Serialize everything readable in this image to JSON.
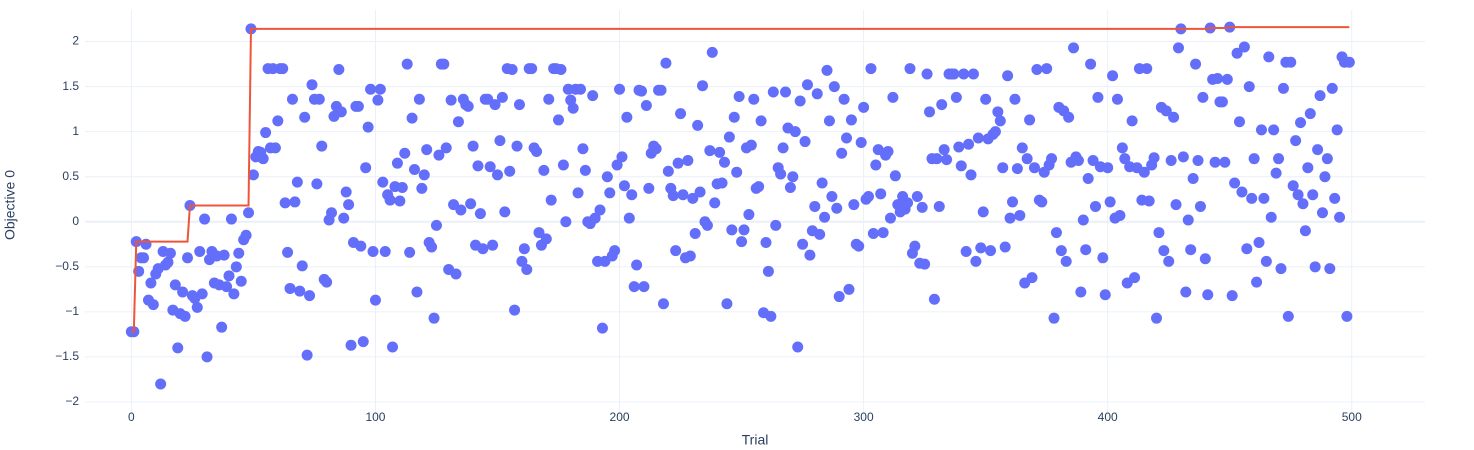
{
  "chart_data": {
    "type": "scatter",
    "x_label": "Trial",
    "y_label": "Objective 0",
    "xlim": [
      -19,
      530
    ],
    "ylim": [
      -2.2,
      2.35
    ],
    "xticks": [
      0,
      100,
      200,
      300,
      400,
      500
    ],
    "yticks": [
      {
        "value": -2,
        "label": "−2"
      },
      {
        "value": -1.5,
        "label": "−1.5"
      },
      {
        "value": -1,
        "label": "−1"
      },
      {
        "value": -0.5,
        "label": "−0.5"
      },
      0,
      0.5,
      1,
      1.5,
      2
    ],
    "grid": true,
    "series": [
      {
        "color": "#636efa",
        "mode": "markers",
        "x": [
          0,
          1,
          2,
          3,
          4,
          5,
          6,
          7,
          8,
          9,
          10,
          11,
          12,
          13,
          14,
          15,
          16,
          17,
          18,
          19,
          20,
          21,
          22,
          23,
          24,
          25,
          26,
          27,
          28,
          29,
          30,
          31,
          32,
          33,
          34,
          35,
          36,
          37,
          38,
          39,
          40,
          41,
          42,
          43,
          44,
          45,
          46,
          47,
          48,
          49,
          50,
          51,
          52,
          53,
          54,
          55,
          56,
          57,
          58,
          59,
          60,
          61,
          62,
          63,
          64,
          65,
          66,
          67,
          68,
          69,
          70,
          71,
          72,
          73,
          74,
          75,
          76,
          77,
          78,
          79,
          80,
          81,
          82,
          83,
          84,
          85,
          86,
          87,
          88,
          89,
          90,
          91,
          92,
          93,
          94,
          95,
          96,
          97,
          98,
          99,
          100,
          101,
          102,
          103,
          104,
          105,
          106,
          107,
          108,
          109,
          110,
          111,
          112,
          113,
          114,
          115,
          116,
          117,
          118,
          119,
          120,
          121,
          122,
          123,
          124,
          125,
          126,
          127,
          128,
          129,
          130,
          131,
          132,
          133,
          134,
          135,
          136,
          137,
          138,
          139,
          140,
          141,
          142,
          143,
          144,
          145,
          146,
          147,
          148,
          149,
          150,
          151,
          152,
          153,
          154,
          155,
          156,
          157,
          158,
          159,
          160,
          161,
          162,
          163,
          164,
          165,
          166,
          167,
          168,
          169,
          170,
          171,
          172,
          173,
          174,
          175,
          176,
          177,
          178,
          179,
          180,
          181,
          182,
          183,
          184,
          185,
          186,
          187,
          188,
          189,
          190,
          191,
          192,
          193,
          194,
          195,
          196,
          197,
          198,
          199,
          200,
          201,
          202,
          203,
          204,
          205,
          206,
          207,
          208,
          209,
          210,
          211,
          212,
          213,
          214,
          215,
          216,
          217,
          218,
          219,
          220,
          221,
          222,
          223,
          224,
          225,
          226,
          227,
          228,
          229,
          230,
          231,
          232,
          233,
          234,
          235,
          236,
          237,
          238,
          239,
          240,
          241,
          242,
          243,
          244,
          245,
          246,
          247,
          248,
          249,
          250,
          251,
          252,
          253,
          254,
          255,
          256,
          257,
          258,
          259,
          260,
          261,
          262,
          263,
          264,
          265,
          266,
          267,
          268,
          269,
          270,
          271,
          272,
          273,
          274,
          275,
          276,
          277,
          278,
          279,
          280,
          281,
          282,
          283,
          284,
          285,
          286,
          287,
          288,
          289,
          290,
          291,
          292,
          293,
          294,
          295,
          296,
          297,
          298,
          299,
          300,
          301,
          302,
          303,
          304,
          305,
          306,
          307,
          308,
          309,
          310,
          311,
          312,
          313,
          314,
          315,
          316,
          317,
          318,
          319,
          320,
          321,
          322,
          323,
          324,
          325,
          326,
          327,
          328,
          329,
          330,
          331,
          332,
          333,
          334,
          335,
          336,
          337,
          338,
          339,
          340,
          341,
          342,
          343,
          344,
          345,
          346,
          347,
          348,
          349,
          350,
          351,
          352,
          353,
          354,
          355,
          356,
          357,
          358,
          359,
          360,
          361,
          362,
          363,
          364,
          365,
          366,
          367,
          368,
          369,
          370,
          371,
          372,
          373,
          374,
          375,
          376,
          377,
          378,
          379,
          380,
          381,
          382,
          383,
          384,
          385,
          386,
          387,
          388,
          389,
          390,
          391,
          392,
          393,
          394,
          395,
          396,
          397,
          398,
          399,
          400,
          401,
          402,
          403,
          404,
          405,
          406,
          407,
          408,
          409,
          410,
          411,
          412,
          413,
          414,
          415,
          416,
          417,
          418,
          419,
          420,
          421,
          422,
          423,
          424,
          425,
          426,
          427,
          428,
          429,
          430,
          431,
          432,
          433,
          434,
          435,
          436,
          437,
          438,
          439,
          440,
          441,
          442,
          443,
          444,
          445,
          446,
          447,
          448,
          449,
          450,
          451,
          452,
          453,
          454,
          455,
          456,
          457,
          458,
          459,
          460,
          461,
          462,
          463,
          464,
          465,
          466,
          467,
          468,
          469,
          470,
          471,
          472,
          473,
          474,
          475,
          476,
          477,
          478,
          479,
          480,
          481,
          482,
          483,
          484,
          485,
          486,
          487,
          488,
          489,
          490,
          491,
          492,
          493,
          494,
          495,
          496,
          497,
          498,
          499
        ],
        "values": [
          -1.22,
          -1.22,
          -0.22,
          -0.55,
          -0.4,
          -0.4,
          -0.25,
          -0.87,
          -0.68,
          -0.92,
          -0.58,
          -0.52,
          -1.8,
          -0.33,
          -0.48,
          -0.45,
          -0.35,
          -0.98,
          -0.7,
          -1.4,
          -1.02,
          -0.78,
          -1.05,
          -0.4,
          0.18,
          -0.82,
          -0.85,
          -0.95,
          -0.33,
          -0.8,
          0.03,
          -1.5,
          -0.42,
          -0.33,
          -0.68,
          -0.38,
          -0.7,
          -1.17,
          -0.37,
          -0.72,
          -0.6,
          0.03,
          -0.8,
          -0.5,
          -0.35,
          -0.66,
          -0.2,
          -0.15,
          0.1,
          2.14,
          0.52,
          0.72,
          0.78,
          0.77,
          0.7,
          0.99,
          1.7,
          0.82,
          1.7,
          0.82,
          1.12,
          1.7,
          1.7,
          0.21,
          -0.34,
          -0.74,
          1.36,
          0.22,
          0.44,
          -0.77,
          -0.49,
          1.16,
          -1.48,
          -0.82,
          1.52,
          1.36,
          0.42,
          1.36,
          0.84,
          -0.64,
          -0.67,
          0.02,
          0.1,
          1.17,
          1.28,
          1.69,
          1.22,
          0.04,
          0.33,
          0.19,
          -1.37,
          -0.23,
          1.28,
          1.28,
          -0.27,
          -1.33,
          0.6,
          1.05,
          1.47,
          -0.33,
          -0.87,
          1.35,
          1.47,
          0.44,
          -0.33,
          0.3,
          0.24,
          -1.39,
          0.39,
          0.65,
          0.23,
          0.38,
          0.76,
          1.75,
          -0.34,
          1.15,
          0.58,
          -0.78,
          1.36,
          0.37,
          0.52,
          0.8,
          -0.23,
          -0.28,
          -1.07,
          -0.04,
          0.74,
          1.75,
          1.75,
          0.82,
          -0.53,
          1.35,
          0.19,
          -0.58,
          1.11,
          0.13,
          1.36,
          1.3,
          1.28,
          0.2,
          0.84,
          -0.26,
          0.62,
          0.09,
          -0.3,
          1.36,
          1.36,
          0.61,
          -0.26,
          1.3,
          0.52,
          0.9,
          1.38,
          0.11,
          1.7,
          0.56,
          1.69,
          -0.98,
          0.84,
          1.3,
          -0.44,
          -0.3,
          -0.53,
          1.7,
          1.7,
          0.82,
          0.78,
          -0.12,
          -0.26,
          0.57,
          -0.19,
          1.36,
          0.24,
          1.7,
          1.7,
          1.13,
          1.69,
          0.63,
          0.0,
          1.47,
          1.35,
          1.26,
          1.47,
          0.32,
          1.47,
          0.81,
          0.57,
          0.0,
          -0.02,
          1.4,
          0.04,
          -0.44,
          0.13,
          -1.18,
          -0.44,
          0.5,
          0.32,
          -0.38,
          -0.32,
          0.63,
          1.47,
          0.72,
          0.4,
          1.16,
          0.04,
          0.3,
          -0.72,
          -0.48,
          1.46,
          1.45,
          -0.72,
          1.29,
          0.37,
          0.76,
          0.84,
          0.81,
          1.46,
          1.46,
          -0.91,
          1.76,
          0.56,
          0.37,
          0.29,
          -0.32,
          0.65,
          1.2,
          0.3,
          -0.4,
          0.68,
          -0.38,
          0.26,
          -0.13,
          1.07,
          0.33,
          1.51,
          0.0,
          -0.04,
          0.79,
          1.88,
          0.21,
          0.42,
          0.77,
          0.43,
          0.66,
          -0.91,
          0.94,
          -0.09,
          1.16,
          0.55,
          1.39,
          -0.22,
          -0.09,
          0.82,
          0.08,
          0.85,
          1.36,
          0.37,
          0.39,
          1.12,
          -1.01,
          -0.23,
          -0.55,
          -1.05,
          1.44,
          -0.04,
          0.6,
          0.53,
          0.82,
          1.44,
          1.04,
          0.38,
          0.5,
          1.0,
          -1.39,
          1.34,
          -0.25,
          0.89,
          1.52,
          -0.37,
          -0.1,
          0.17,
          1.42,
          -0.14,
          0.43,
          0.05,
          1.68,
          1.12,
          0.28,
          1.5,
          0.15,
          -0.83,
          0.76,
          1.36,
          0.93,
          -0.75,
          1.13,
          0.19,
          -0.25,
          -0.27,
          0.88,
          1.27,
          0.25,
          0.28,
          1.7,
          -0.13,
          0.63,
          0.8,
          0.31,
          -0.12,
          0.74,
          0.78,
          0.04,
          1.38,
          0.51,
          0.19,
          0.11,
          0.28,
          0.14,
          0.21,
          1.7,
          -0.35,
          -0.27,
          0.28,
          -0.46,
          0.16,
          -0.47,
          1.64,
          1.22,
          0.7,
          -0.86,
          0.7,
          0.17,
          1.3,
          0.8,
          0.69,
          1.64,
          1.64,
          1.64,
          1.38,
          0.83,
          0.62,
          1.64,
          -0.33,
          0.86,
          0.52,
          1.64,
          -0.44,
          0.93,
          -0.29,
          0.11,
          1.36,
          0.92,
          -0.32,
          0.97,
          1.0,
          1.22,
          1.12,
          0.6,
          -0.28,
          1.62,
          0.04,
          0.22,
          1.36,
          0.59,
          0.07,
          0.82,
          -0.68,
          0.7,
          1.13,
          -0.62,
          0.6,
          1.69,
          0.24,
          0.22,
          0.55,
          1.7,
          0.63,
          0.7,
          -1.07,
          -0.12,
          1.27,
          -0.32,
          1.23,
          -0.44,
          1.16,
          0.66,
          1.93,
          0.72,
          0.68,
          -0.78,
          0.02,
          -0.31,
          0.48,
          1.75,
          0.68,
          0.17,
          1.38,
          0.61,
          -0.4,
          -0.81,
          0.6,
          0.22,
          1.62,
          0.04,
          1.36,
          0.07,
          0.82,
          0.7,
          -0.68,
          0.61,
          1.12,
          -0.62,
          0.6,
          1.7,
          0.24,
          0.55,
          1.7,
          0.23,
          0.63,
          0.71,
          -1.07,
          -0.12,
          1.27,
          -0.32,
          1.23,
          -0.44,
          0.68,
          1.16,
          0.19,
          1.93,
          2.14,
          0.72,
          -0.78,
          0.02,
          -0.31,
          0.48,
          1.75,
          0.68,
          0.17,
          1.38,
          -0.41,
          -0.81,
          2.15,
          1.58,
          0.66,
          1.59,
          1.33,
          1.33,
          0.66,
          1.58,
          2.16,
          -0.82,
          0.43,
          1.87,
          1.11,
          0.33,
          1.94,
          -0.3,
          1.5,
          0.26,
          0.7,
          -0.67,
          -0.23,
          1.02,
          0.26,
          -0.44,
          1.83,
          0.05,
          1.02,
          0.54,
          0.7,
          -0.52,
          1.48,
          1.77,
          -1.05,
          1.77,
          0.4,
          0.9,
          0.3,
          1.1,
          0.2,
          -0.1,
          0.6,
          1.2,
          0.3,
          -0.5,
          0.8,
          1.4,
          0.1,
          0.5,
          0.7,
          -0.52,
          1.48,
          0.26,
          1.02,
          0.05,
          1.83,
          1.77,
          -1.05,
          1.77
        ]
      },
      {
        "color": "#ef553b",
        "mode": "lines",
        "x": [
          0,
          1,
          2,
          23,
          24,
          48,
          49,
          441,
          442,
          449,
          450,
          499
        ],
        "values": [
          -1.22,
          -1.22,
          -0.22,
          -0.22,
          0.18,
          0.18,
          2.14,
          2.14,
          2.15,
          2.15,
          2.16,
          2.16
        ]
      }
    ]
  }
}
